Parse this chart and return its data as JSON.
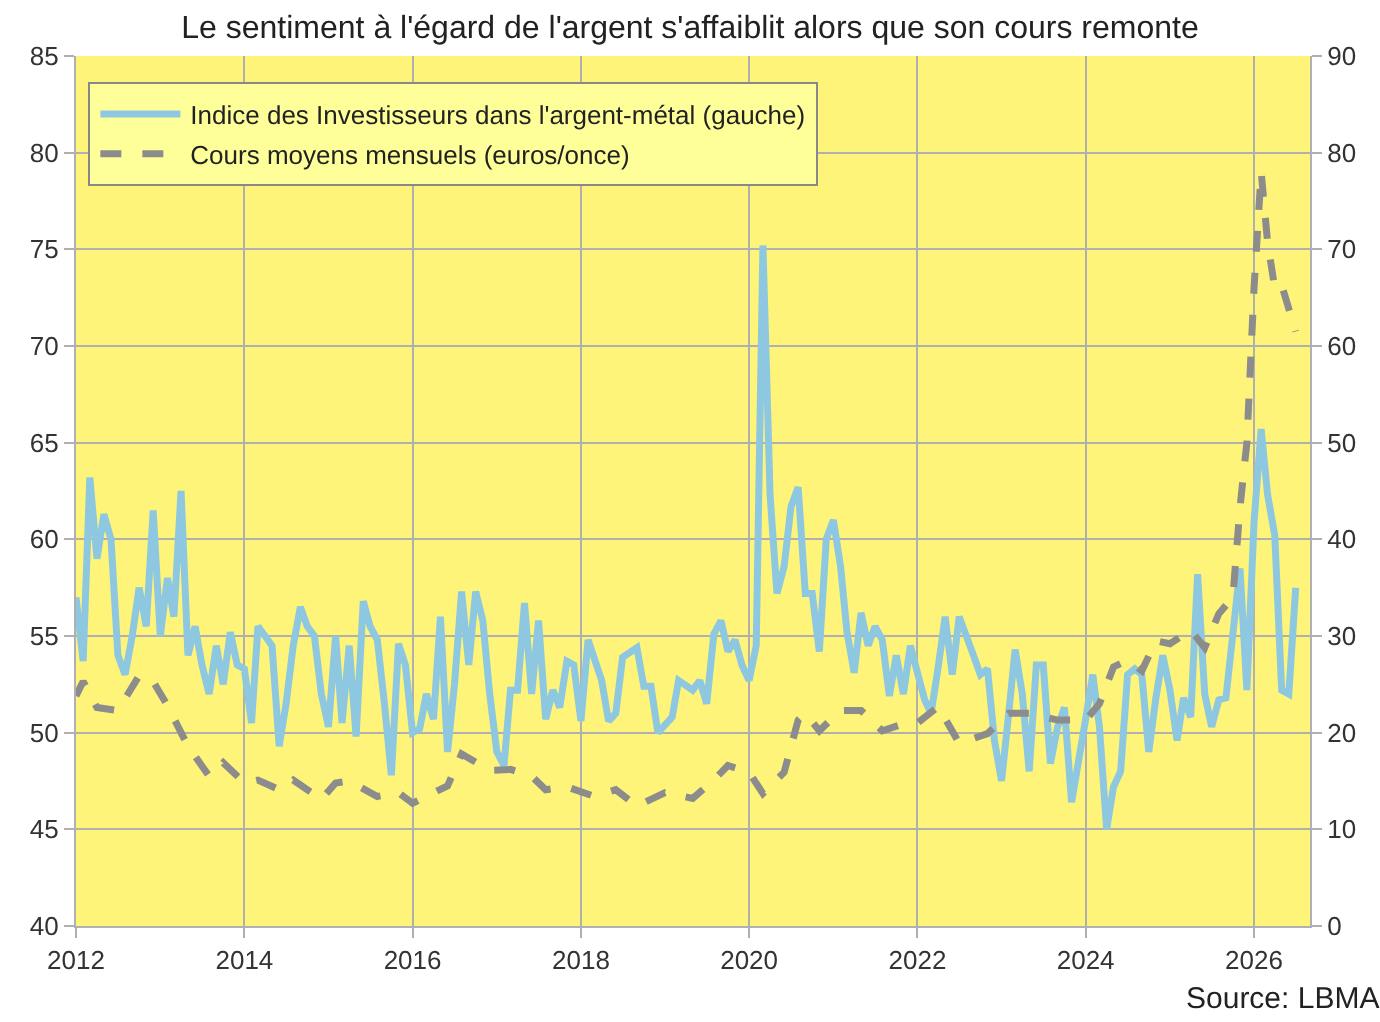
{
  "chart_data": {
    "type": "line",
    "title": "Le sentiment à l'égard de l'argent s'affaiblit alors que son cours remonte",
    "annotations": [
      "Source: LBMA"
    ],
    "xlim": [
      "2012-01-01",
      "2026-09-01"
    ],
    "xticks": [
      {
        "value": "2012-01-01",
        "label": "2012"
      },
      {
        "value": "2014-01-01",
        "label": "2014"
      },
      {
        "value": "2016-01-01",
        "label": "2016"
      },
      {
        "value": "2018-01-01",
        "label": "2018"
      },
      {
        "value": "2020-01-01",
        "label": "2020"
      },
      {
        "value": "2022-01-01",
        "label": "2022"
      },
      {
        "value": "2024-01-01",
        "label": "2024"
      },
      {
        "value": "2026-01-01",
        "label": "2026"
      }
    ],
    "ylim": [
      40,
      85
    ],
    "yticks": [
      40,
      45,
      50,
      55,
      60,
      65,
      70,
      75,
      80,
      85
    ],
    "y2lim": [
      0,
      90
    ],
    "y2ticks": [
      0,
      10,
      20,
      30,
      40,
      50,
      60,
      70,
      80,
      90
    ],
    "grid": true,
    "legend": "top left",
    "marker": "none",
    "series": [
      {
        "name": "Indice des Investisseurs dans l'argent-métal (gauche)",
        "color": "#8ec8e0",
        "line_style": "solid",
        "x": [
          "2012-01",
          "2012-02",
          "2012-03",
          "2012-04",
          "2012-05",
          "2012-06",
          "2012-07",
          "2012-08",
          "2012-09",
          "2012-10",
          "2012-11",
          "2012-12",
          "2013-01",
          "2013-02",
          "2013-03",
          "2013-04",
          "2013-05",
          "2013-06",
          "2013-07",
          "2013-08",
          "2013-09",
          "2013-10",
          "2013-11",
          "2013-12",
          "2014-01",
          "2014-02",
          "2014-03",
          "2014-04",
          "2014-05",
          "2014-06",
          "2014-07",
          "2014-08",
          "2014-09",
          "2014-10",
          "2014-11",
          "2014-12",
          "2015-01",
          "2015-02",
          "2015-03",
          "2015-04",
          "2015-05",
          "2015-06",
          "2015-07",
          "2015-08",
          "2015-09",
          "2015-10",
          "2015-11",
          "2015-12",
          "2016-01",
          "2016-02",
          "2016-03",
          "2016-04",
          "2016-05",
          "2016-06",
          "2016-07",
          "2016-08",
          "2016-09",
          "2016-10",
          "2016-11",
          "2016-12",
          "2017-01",
          "2017-02",
          "2017-03",
          "2017-04",
          "2017-05",
          "2017-06",
          "2017-07",
          "2017-08",
          "2017-09",
          "2017-10",
          "2017-11",
          "2017-12",
          "2018-01",
          "2018-02",
          "2018-04",
          "2018-05",
          "2018-06",
          "2018-07",
          "2018-09",
          "2018-10",
          "2018-11",
          "2018-12",
          "2019-02",
          "2019-03",
          "2019-05",
          "2019-06",
          "2019-07",
          "2019-08",
          "2019-09",
          "2019-10",
          "2019-11",
          "2019-12",
          "2020-01",
          "2020-02",
          "2020-03",
          "2020-04",
          "2020-05",
          "2020-06",
          "2020-07",
          "2020-08",
          "2020-09",
          "2020-10",
          "2020-11",
          "2020-12",
          "2021-01",
          "2021-02",
          "2021-03",
          "2021-04",
          "2021-05",
          "2021-06",
          "2021-07",
          "2021-08",
          "2021-09",
          "2021-10",
          "2021-11",
          "2021-12",
          "2022-02",
          "2022-03",
          "2022-04",
          "2022-05",
          "2022-06",
          "2022-07",
          "2022-09",
          "2022-10",
          "2022-11",
          "2022-12",
          "2023-01",
          "2023-02",
          "2023-03",
          "2023-04",
          "2023-05",
          "2023-06",
          "2023-07",
          "2023-08",
          "2023-09",
          "2023-10",
          "2023-11",
          "2024-01",
          "2024-02",
          "2024-03",
          "2024-04",
          "2024-05",
          "2024-06",
          "2024-07",
          "2024-08",
          "2024-09",
          "2024-10",
          "2024-11",
          "2024-12",
          "2025-01",
          "2025-02",
          "2025-03",
          "2025-04",
          "2025-05",
          "2025-06",
          "2025-07",
          "2025-08",
          "2025-09",
          "2025-10",
          "2025-11",
          "2025-12",
          "2026-01",
          "2026-02",
          "2026-03",
          "2026-04",
          "2026-05",
          "2026-06",
          "2026-07"
        ],
        "values": [
          57,
          53.7,
          63.2,
          59,
          61.3,
          60,
          54,
          53,
          55,
          57.5,
          55.5,
          61.5,
          55,
          58,
          56,
          62.5,
          54,
          55.5,
          53.5,
          52,
          54.5,
          52.5,
          55.2,
          53.5,
          53.3,
          50.5,
          55.5,
          55,
          54.5,
          49.3,
          51.5,
          54.5,
          56.5,
          55.5,
          55,
          52,
          50.3,
          55,
          50.5,
          54.5,
          49.8,
          56.8,
          55.5,
          54.8,
          51.5,
          47.8,
          54.6,
          53.5,
          50,
          50.2,
          52,
          50.7,
          56,
          49,
          52.5,
          57.3,
          53.5,
          57.3,
          55.8,
          52,
          49,
          48.3,
          52.2,
          52.2,
          56.7,
          52,
          55.8,
          50.7,
          52.2,
          51.3,
          53.7,
          53.5,
          50.6,
          54.8,
          52.7,
          50.6,
          51,
          53.9,
          54.4,
          52.4,
          52.4,
          50,
          50.8,
          52.7,
          52.2,
          52.7,
          51.5,
          55.1,
          55.8,
          54.2,
          54.8,
          53.5,
          52.7,
          54.5,
          75.2,
          62.3,
          57.2,
          58.6,
          61.7,
          62.7,
          57.2,
          57.2,
          54.2,
          60,
          61,
          58.6,
          55.2,
          53.1,
          56.2,
          54.5,
          55.5,
          54.8,
          51.9,
          54,
          52,
          54.5,
          51.7,
          51,
          53.4,
          56,
          53,
          56,
          54,
          53,
          53.3,
          49.6,
          47.5,
          51,
          54.3,
          52,
          48,
          53.5,
          53.5,
          48.4,
          50.3,
          51.3,
          46.4,
          50.7,
          53,
          50.3,
          45,
          47.2,
          48,
          53,
          53.3,
          53,
          49,
          51.8,
          54,
          52.2,
          49.6,
          51.8,
          50.8,
          58.2,
          52,
          50.3,
          51.7,
          51.8,
          55.1,
          58.5,
          52.2,
          60.9,
          65.7,
          62.3,
          60.2,
          52.2,
          52,
          57.5
        ]
      },
      {
        "name": "Cours moyens mensuels (euros/once)",
        "color": "#8c8c8c",
        "line_style": "dashed",
        "axis": "y2",
        "x": [
          "2012-01",
          "2012-02",
          "2012-04",
          "2012-07",
          "2012-10",
          "2012-12",
          "2013-02",
          "2013-05",
          "2013-08",
          "2013-10",
          "2014-01",
          "2014-03",
          "2014-06",
          "2014-08",
          "2014-12",
          "2015-02",
          "2015-04",
          "2015-08",
          "2015-11",
          "2016-01",
          "2016-06",
          "2016-08",
          "2016-12",
          "2017-03",
          "2017-06",
          "2017-08",
          "2017-11",
          "2018-03",
          "2018-06",
          "2018-09",
          "2019-01",
          "2019-05",
          "2019-08",
          "2019-10",
          "2020-01",
          "2020-03",
          "2020-06",
          "2020-08",
          "2020-09",
          "2020-11",
          "2021-02",
          "2021-05",
          "2021-08",
          "2021-11",
          "2022-01",
          "2022-04",
          "2022-07",
          "2022-11",
          "2023-02",
          "2023-05",
          "2023-09",
          "2024-01",
          "2024-03",
          "2024-05",
          "2024-07",
          "2024-09",
          "2024-11",
          "2025-01",
          "2025-04",
          "2025-06",
          "2025-08",
          "2025-10",
          "2025-11",
          "2025-12",
          "2026-01",
          "2026-02",
          "2026-03",
          "2026-04",
          "2026-05",
          "2026-07"
        ],
        "values": [
          23.8,
          25.3,
          22.6,
          22.3,
          25.9,
          25.3,
          22.8,
          18.6,
          15.5,
          16.9,
          14.8,
          15.1,
          14.1,
          15.1,
          13.1,
          14.8,
          15,
          13.4,
          13.8,
          12.7,
          14.5,
          17.8,
          16.1,
          16.2,
          15.5,
          14.1,
          14.4,
          13.4,
          14.1,
          12.4,
          13.8,
          13.2,
          15.1,
          16.6,
          15.9,
          13.7,
          15.9,
          21.3,
          22,
          20.2,
          22.3,
          22.3,
          20.2,
          20.9,
          21,
          22.7,
          18.9,
          19.9,
          22,
          22,
          21.3,
          21.3,
          23,
          26.8,
          27.5,
          26.4,
          29.5,
          29.2,
          30.6,
          28.8,
          32.3,
          34,
          43.3,
          50,
          66,
          78,
          70.7,
          66,
          66.3,
          61.5
        ]
      }
    ]
  }
}
